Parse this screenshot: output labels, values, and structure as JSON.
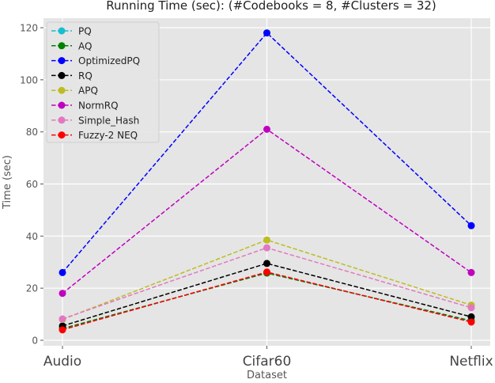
{
  "chart_data": {
    "type": "line",
    "title": "Running Time (sec): (#Codebooks = 8, #Clusters = 32)",
    "xlabel": "Dataset",
    "ylabel": "Time (sec)",
    "categories": [
      "Audio",
      "Cifar60",
      "Netflix"
    ],
    "yticks": [
      0,
      20,
      40,
      60,
      80,
      100,
      120
    ],
    "ylim": [
      -2,
      124
    ],
    "grid": true,
    "legend_position": "upper left",
    "series": [
      {
        "name": "PQ",
        "color": "#17becf",
        "values": [
          4.2,
          26.0,
          7.2
        ]
      },
      {
        "name": "AQ",
        "color": "#008000",
        "values": [
          4.5,
          25.8,
          7.5
        ]
      },
      {
        "name": "OptimizedPQ",
        "color": "#0000ff",
        "values": [
          26.0,
          118.0,
          44.0
        ]
      },
      {
        "name": "RQ",
        "color": "#000000",
        "values": [
          5.5,
          29.5,
          9.0
        ]
      },
      {
        "name": "APQ",
        "color": "#bcbd22",
        "values": [
          8.0,
          38.5,
          13.5
        ]
      },
      {
        "name": "NormRQ",
        "color": "#bf00bf",
        "values": [
          18.0,
          81.0,
          26.0
        ]
      },
      {
        "name": "Simple_Hash",
        "color": "#e377c2",
        "values": [
          8.2,
          35.5,
          12.5
        ]
      },
      {
        "name": "Fuzzy-2 NEQ",
        "color": "#ff0000",
        "values": [
          4.0,
          26.2,
          7.0
        ]
      }
    ]
  }
}
